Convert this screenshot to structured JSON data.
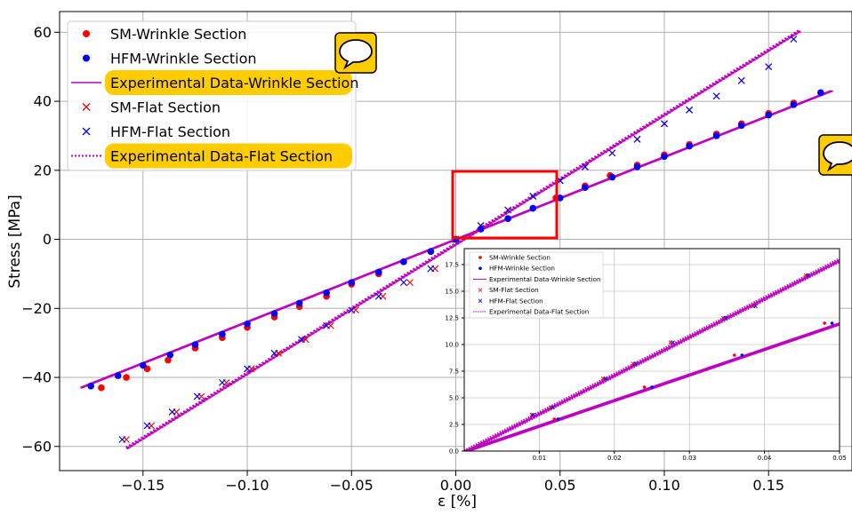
{
  "chart_data": [
    {
      "type": "scatter",
      "xlabel": "ε [%]",
      "ylabel": "Stress [MPa]",
      "xlim": [
        -0.19,
        0.19
      ],
      "ylim": [
        -67,
        66
      ],
      "x_ticks": [
        -0.15,
        -0.1,
        -0.05,
        0.0,
        0.05,
        0.1,
        0.15
      ],
      "x_tick_labels": [
        "−0.15",
        "−0.10",
        "−0.05",
        "0.00",
        "0.05",
        "0.10",
        "0.15"
      ],
      "y_ticks": [
        -60,
        -40,
        -20,
        0,
        20,
        40,
        60
      ],
      "y_tick_labels": [
        "−60",
        "−40",
        "−20",
        "0",
        "20",
        "40",
        "60"
      ],
      "grid": true,
      "legend_placement": "top-left",
      "series": [
        {
          "name": "SM-Wrinkle Section",
          "style": "dot",
          "color": "#ff0000",
          "x": [
            -0.17,
            -0.158,
            -0.148,
            -0.138,
            -0.125,
            -0.112,
            -0.1,
            -0.087,
            -0.075,
            -0.062,
            -0.05,
            -0.037,
            -0.025,
            -0.012,
            0.0,
            0.012,
            0.025,
            0.037,
            0.048,
            0.062,
            0.074,
            0.087,
            0.1,
            0.112,
            0.125,
            0.137,
            0.15,
            0.162
          ],
          "y": [
            -43,
            -40,
            -37.5,
            -35,
            -31.5,
            -28.5,
            -25.5,
            -22.5,
            -19.5,
            -16.5,
            -13,
            -10,
            -6.5,
            -3.5,
            0,
            3,
            6,
            9,
            12,
            15.5,
            18.5,
            21.5,
            24.5,
            27.5,
            30.5,
            33.5,
            36.5,
            39.5
          ]
        },
        {
          "name": "HFM-Wrinkle Section",
          "style": "dot",
          "color": "#0000ff",
          "x": [
            -0.175,
            -0.162,
            -0.15,
            -0.137,
            -0.125,
            -0.112,
            -0.1,
            -0.087,
            -0.075,
            -0.062,
            -0.05,
            -0.037,
            -0.025,
            -0.012,
            0.0,
            0.012,
            0.025,
            0.037,
            0.05,
            0.062,
            0.075,
            0.087,
            0.1,
            0.112,
            0.125,
            0.137,
            0.15,
            0.162,
            0.175
          ],
          "y": [
            -42.5,
            -39.5,
            -36.5,
            -33.5,
            -30.5,
            -27.5,
            -24.5,
            -21.5,
            -18.5,
            -15.5,
            -12.5,
            -9.5,
            -6.5,
            -3.5,
            0,
            3,
            6,
            9,
            12,
            15,
            18,
            21,
            24,
            27,
            30,
            33,
            36,
            39,
            42.5
          ]
        },
        {
          "name": "SM-Flat Section",
          "style": "x",
          "color": "#ff0000",
          "x": [
            -0.158,
            -0.146,
            -0.134,
            -0.122,
            -0.11,
            -0.098,
            -0.085,
            -0.072,
            -0.06,
            -0.048,
            -0.035,
            -0.022,
            -0.01,
            0.0,
            0.012,
            0.025,
            0.037,
            0.05,
            0.062,
            0.075,
            0.087,
            0.1,
            0.112,
            0.125,
            0.137,
            0.15
          ],
          "y": [
            -58,
            -54,
            -50,
            -45.5,
            -41.5,
            -37.5,
            -33,
            -29,
            -25,
            -20.5,
            -16.5,
            -12.5,
            -8.5,
            0,
            4,
            8.5,
            12.5,
            17,
            21,
            25,
            29,
            33.5,
            37.5,
            41.5,
            46,
            50
          ]
        },
        {
          "name": "HFM-Flat Section",
          "style": "x",
          "color": "#0000ff",
          "x": [
            -0.16,
            -0.148,
            -0.136,
            -0.124,
            -0.112,
            -0.1,
            -0.087,
            -0.074,
            -0.062,
            -0.05,
            -0.037,
            -0.025,
            -0.012,
            0.0,
            0.012,
            0.025,
            0.037,
            0.05,
            0.062,
            0.075,
            0.087,
            0.1,
            0.112,
            0.125,
            0.137,
            0.15,
            0.162
          ],
          "y": [
            -58,
            -54,
            -50,
            -45.5,
            -41.5,
            -37.5,
            -33,
            -29,
            -25,
            -20.5,
            -16.5,
            -12.5,
            -8.5,
            0,
            4,
            8.5,
            12.5,
            17,
            21,
            25,
            29,
            33.5,
            37.5,
            41.5,
            46,
            50,
            58
          ]
        },
        {
          "name": "Experimental Data-Wrinkle Section",
          "style": "solid",
          "color": "#c000c0",
          "x": [
            -0.18,
            0.18
          ],
          "y": [
            -43,
            43
          ]
        },
        {
          "name": "Experimental Data-Flat Section",
          "style": "dotted",
          "color": "#c000c0",
          "x": [
            -0.158,
            0.165
          ],
          "y": [
            -60.5,
            60.5
          ]
        }
      ]
    },
    {
      "type": "scatter",
      "xlim": [
        0,
        0.05
      ],
      "ylim": [
        0,
        19
      ],
      "x_ticks": [
        0.01,
        0.02,
        0.03,
        0.04,
        0.05
      ],
      "x_tick_labels": [
        "0.01",
        "0.02",
        "0.03",
        "0.04",
        "0.05"
      ],
      "y_ticks": [
        0,
        2.5,
        5,
        7.5,
        10,
        12.5,
        15,
        17.5
      ],
      "y_tick_labels": [
        "0.0",
        "2.5",
        "5.0",
        "7.5",
        "10.0",
        "12.5",
        "15.0",
        "17.5"
      ],
      "grid": true,
      "legend_placement": "top-left",
      "series": [
        {
          "name": "SM-Wrinkle Section",
          "style": "dot",
          "color": "#ff0000",
          "x": [
            0.012,
            0.024,
            0.036,
            0.048
          ],
          "y": [
            3,
            6,
            9,
            12
          ]
        },
        {
          "name": "HFM-Wrinkle Section",
          "style": "dot",
          "color": "#0000ff",
          "x": [
            0.0125,
            0.025,
            0.037,
            0.049
          ],
          "y": [
            3,
            6,
            9,
            12
          ]
        },
        {
          "name": "SM-Flat Section",
          "style": "x",
          "color": "#ff0000",
          "x": [
            0.009,
            0.0115,
            0.0185,
            0.0225,
            0.0275,
            0.0345,
            0.0385,
            0.0455
          ],
          "y": [
            3.4,
            4.1,
            6.8,
            8.2,
            10.2,
            12.5,
            13.6,
            16.5
          ]
        },
        {
          "name": "HFM-Flat Section",
          "style": "x",
          "color": "#0000ff",
          "x": [
            0.0092,
            0.0118,
            0.0188,
            0.0228,
            0.0278,
            0.0348,
            0.0388,
            0.0458
          ],
          "y": [
            3.4,
            4.1,
            6.8,
            8.2,
            10.2,
            12.5,
            13.6,
            16.5
          ]
        },
        {
          "name": "Experimental Data-Wrinkle Section",
          "style": "solid",
          "color": "#c000c0",
          "x": [
            0,
            0.05
          ],
          "y": [
            0,
            12
          ]
        },
        {
          "name": "Experimental Data-Flat Section",
          "style": "dotted",
          "color": "#c000c0",
          "x": [
            0,
            0.05
          ],
          "y": [
            0,
            18
          ]
        }
      ]
    }
  ],
  "legend": {
    "items": [
      {
        "label": "SM-Wrinkle Section",
        "marker": "dot",
        "color": "#ff0000",
        "highlight": false
      },
      {
        "label": "HFM-Wrinkle Section",
        "marker": "dot",
        "color": "#0000ff",
        "highlight": false
      },
      {
        "label": "Experimental Data-Wrinkle Section",
        "marker": "solid",
        "color": "#c000c0",
        "highlight": true
      },
      {
        "label": "SM-Flat Section",
        "marker": "x",
        "color": "#ff0000",
        "highlight": false
      },
      {
        "label": "HFM-Flat Section",
        "marker": "x",
        "color": "#0000ff",
        "highlight": false
      },
      {
        "label": "Experimental Data-Flat Section",
        "marker": "dotted",
        "color": "#c000c0",
        "highlight": true
      }
    ],
    "highlight_color": "#ffcc00"
  },
  "annotations": {
    "comment_icon": "speech-bubble-icon",
    "comment_icon_color": "#ffcc00",
    "zoom_box_color": "#ff0000"
  }
}
